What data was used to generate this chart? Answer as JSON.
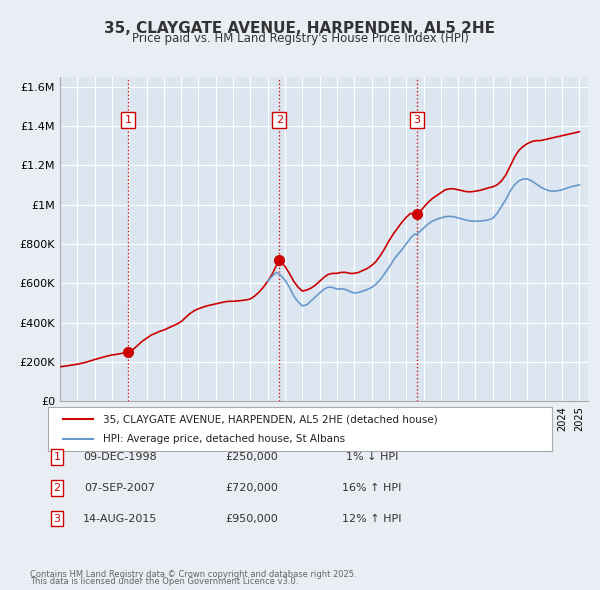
{
  "title": "35, CLAYGATE AVENUE, HARPENDEN, AL5 2HE",
  "subtitle": "Price paid vs. HM Land Registry's House Price Index (HPI)",
  "legend_line1": "35, CLAYGATE AVENUE, HARPENDEN, AL5 2HE (detached house)",
  "legend_line2": "HPI: Average price, detached house, St Albans",
  "footer_line1": "Contains HM Land Registry data © Crown copyright and database right 2025.",
  "footer_line2": "This data is licensed under the Open Government Licence v3.0.",
  "red_color": "#cc0000",
  "blue_color": "#6699cc",
  "background_color": "#e8eef4",
  "plot_bg_color": "#dce6f0",
  "grid_color": "#ffffff",
  "transaction_color": "#cc0000",
  "transactions": [
    {
      "num": 1,
      "date": "09-DEC-1998",
      "price": 250000,
      "pct": "1%",
      "dir": "↓",
      "year": 1998.92
    },
    {
      "num": 2,
      "date": "07-SEP-2007",
      "price": 720000,
      "pct": "16%",
      "dir": "↑",
      "year": 2007.67
    },
    {
      "num": 3,
      "date": "14-AUG-2015",
      "price": 950000,
      "pct": "12%",
      "dir": "↑",
      "year": 2015.62
    }
  ],
  "xlim": [
    1995,
    2025.5
  ],
  "ylim": [
    0,
    1650000
  ],
  "yticks": [
    0,
    200000,
    400000,
    600000,
    800000,
    1000000,
    1200000,
    1400000,
    1600000
  ],
  "ytick_labels": [
    "£0",
    "£200K",
    "£400K",
    "£600K",
    "£800K",
    "£1M",
    "£1.2M",
    "£1.4M",
    "£1.6M"
  ],
  "red_series": {
    "years": [
      1995.0,
      1995.25,
      1995.5,
      1995.75,
      1996.0,
      1996.25,
      1996.5,
      1996.75,
      1997.0,
      1997.25,
      1997.5,
      1997.75,
      1998.0,
      1998.25,
      1998.5,
      1998.75,
      1998.92,
      1999.0,
      1999.25,
      1999.5,
      1999.75,
      2000.0,
      2000.25,
      2000.5,
      2000.75,
      2001.0,
      2001.25,
      2001.5,
      2001.75,
      2002.0,
      2002.25,
      2002.5,
      2002.75,
      2003.0,
      2003.25,
      2003.5,
      2003.75,
      2004.0,
      2004.25,
      2004.5,
      2004.75,
      2005.0,
      2005.25,
      2005.5,
      2005.75,
      2006.0,
      2006.25,
      2006.5,
      2006.75,
      2007.0,
      2007.25,
      2007.5,
      2007.67,
      2007.75,
      2008.0,
      2008.25,
      2008.5,
      2008.75,
      2009.0,
      2009.25,
      2009.5,
      2009.75,
      2010.0,
      2010.25,
      2010.5,
      2010.75,
      2011.0,
      2011.25,
      2011.5,
      2011.75,
      2012.0,
      2012.25,
      2012.5,
      2012.75,
      2013.0,
      2013.25,
      2013.5,
      2013.75,
      2014.0,
      2014.25,
      2014.5,
      2014.75,
      2015.0,
      2015.25,
      2015.5,
      2015.62,
      2015.75,
      2016.0,
      2016.25,
      2016.5,
      2016.75,
      2017.0,
      2017.25,
      2017.5,
      2017.75,
      2018.0,
      2018.25,
      2018.5,
      2018.75,
      2019.0,
      2019.25,
      2019.5,
      2019.75,
      2020.0,
      2020.25,
      2020.5,
      2020.75,
      2021.0,
      2021.25,
      2021.5,
      2021.75,
      2022.0,
      2022.25,
      2022.5,
      2022.75,
      2023.0,
      2023.25,
      2023.5,
      2023.75,
      2024.0,
      2024.25,
      2024.5,
      2024.75,
      2025.0
    ],
    "values": [
      175000,
      178000,
      181000,
      185000,
      188000,
      193000,
      198000,
      205000,
      212000,
      218000,
      224000,
      230000,
      235000,
      238000,
      242000,
      246000,
      250000,
      252000,
      265000,
      285000,
      305000,
      320000,
      335000,
      345000,
      355000,
      362000,
      372000,
      382000,
      392000,
      405000,
      425000,
      445000,
      460000,
      470000,
      478000,
      485000,
      490000,
      495000,
      500000,
      505000,
      508000,
      508000,
      510000,
      512000,
      515000,
      520000,
      535000,
      555000,
      580000,
      610000,
      645000,
      690000,
      720000,
      710000,
      685000,
      650000,
      610000,
      580000,
      560000,
      565000,
      575000,
      590000,
      610000,
      630000,
      645000,
      650000,
      650000,
      655000,
      655000,
      650000,
      650000,
      655000,
      665000,
      675000,
      690000,
      710000,
      740000,
      775000,
      815000,
      850000,
      880000,
      910000,
      935000,
      955000,
      950000,
      950000,
      960000,
      985000,
      1010000,
      1030000,
      1045000,
      1060000,
      1075000,
      1080000,
      1080000,
      1075000,
      1070000,
      1065000,
      1065000,
      1068000,
      1072000,
      1078000,
      1085000,
      1090000,
      1100000,
      1120000,
      1150000,
      1195000,
      1240000,
      1275000,
      1295000,
      1310000,
      1320000,
      1325000,
      1325000,
      1330000,
      1335000,
      1340000,
      1345000,
      1350000,
      1355000,
      1360000,
      1365000,
      1370000
    ]
  },
  "blue_series": {
    "years": [
      2007.0,
      2007.25,
      2007.5,
      2007.75,
      2008.0,
      2008.25,
      2008.5,
      2008.75,
      2009.0,
      2009.25,
      2009.5,
      2009.75,
      2010.0,
      2010.25,
      2010.5,
      2010.75,
      2011.0,
      2011.25,
      2011.5,
      2011.75,
      2012.0,
      2012.25,
      2012.5,
      2012.75,
      2013.0,
      2013.25,
      2013.5,
      2013.75,
      2014.0,
      2014.25,
      2014.5,
      2014.75,
      2015.0,
      2015.25,
      2015.5,
      2015.62,
      2015.75,
      2016.0,
      2016.25,
      2016.5,
      2016.75,
      2017.0,
      2017.25,
      2017.5,
      2017.75,
      2018.0,
      2018.25,
      2018.5,
      2018.75,
      2019.0,
      2019.25,
      2019.5,
      2019.75,
      2020.0,
      2020.25,
      2020.5,
      2020.75,
      2021.0,
      2021.25,
      2021.5,
      2021.75,
      2022.0,
      2022.25,
      2022.5,
      2022.75,
      2023.0,
      2023.25,
      2023.5,
      2023.75,
      2024.0,
      2024.25,
      2024.5,
      2024.75,
      2025.0
    ],
    "values": [
      610000,
      635000,
      655000,
      640000,
      615000,
      580000,
      535000,
      505000,
      485000,
      490000,
      510000,
      530000,
      550000,
      570000,
      580000,
      578000,
      570000,
      572000,
      568000,
      558000,
      550000,
      553000,
      560000,
      568000,
      578000,
      595000,
      618000,
      648000,
      680000,
      715000,
      745000,
      770000,
      800000,
      830000,
      850000,
      848000,
      860000,
      880000,
      900000,
      915000,
      925000,
      932000,
      938000,
      940000,
      938000,
      932000,
      926000,
      920000,
      916000,
      915000,
      916000,
      918000,
      922000,
      930000,
      955000,
      990000,
      1025000,
      1068000,
      1100000,
      1120000,
      1130000,
      1130000,
      1120000,
      1105000,
      1090000,
      1078000,
      1070000,
      1068000,
      1070000,
      1075000,
      1082000,
      1090000,
      1095000,
      1100000
    ]
  }
}
